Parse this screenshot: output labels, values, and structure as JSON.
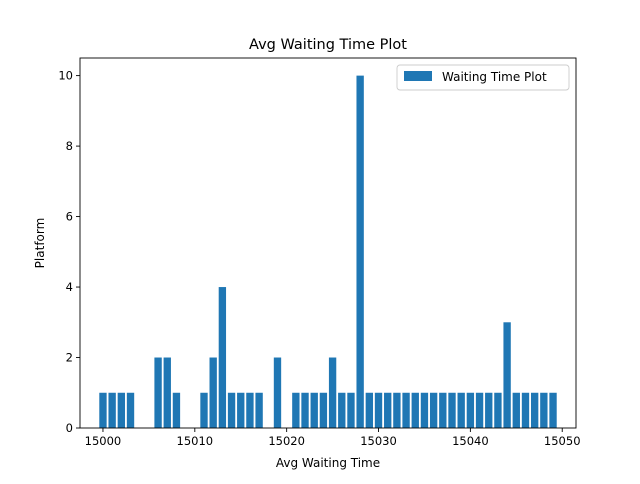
{
  "chart_data": {
    "type": "bar",
    "title": "Avg Waiting Time Plot",
    "xlabel": "Avg Waiting Time",
    "ylabel": "Platform",
    "legend": {
      "placement": "top-right",
      "entries": [
        "Waiting Time Plot"
      ]
    },
    "grid": false,
    "xlim": [
      14997.5,
      15051.5
    ],
    "ylim": [
      0,
      10.5
    ],
    "xticks": [
      15000,
      15010,
      15020,
      15030,
      15040,
      15050
    ],
    "yticks": [
      0,
      2,
      4,
      6,
      8,
      10
    ],
    "bar_color": "#1f77b4",
    "series": [
      {
        "name": "Waiting Time Plot",
        "x": [
          15000,
          15001,
          15002,
          15003,
          15006,
          15007,
          15008,
          15011,
          15012,
          15013,
          15014,
          15015,
          15016,
          15017,
          15019,
          15021,
          15022,
          15023,
          15024,
          15025,
          15026,
          15027,
          15028,
          15029,
          15030,
          15031,
          15032,
          15033,
          15034,
          15035,
          15036,
          15037,
          15038,
          15039,
          15040,
          15041,
          15042,
          15043,
          15044,
          15045,
          15046,
          15047,
          15048,
          15049
        ],
        "values": [
          1,
          1,
          1,
          1,
          2,
          2,
          1,
          1,
          2,
          4,
          1,
          1,
          1,
          1,
          2,
          1,
          1,
          1,
          1,
          2,
          1,
          1,
          10,
          1,
          1,
          1,
          1,
          1,
          1,
          1,
          1,
          1,
          1,
          1,
          1,
          1,
          1,
          1,
          3,
          1,
          1,
          1,
          1,
          1
        ]
      }
    ]
  }
}
